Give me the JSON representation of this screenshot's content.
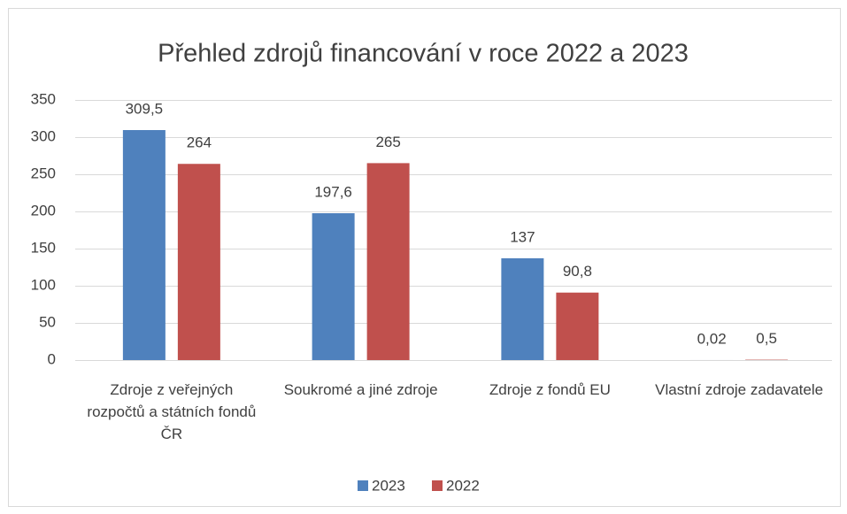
{
  "chart_data": {
    "type": "bar",
    "title": "Přehled zdrojů financování v roce 2022 a 2023",
    "categories": [
      "Zdroje z veřejných rozpočtů a státních fondů ČR",
      "Soukromé a jiné zdroje",
      "Zdroje z fondů EU",
      "Vlastní zdroje zadavatele"
    ],
    "series": [
      {
        "name": "2023",
        "color": "#4f81bd",
        "values": [
          309.5,
          197.6,
          137,
          0.02
        ],
        "value_labels": [
          "309,5",
          "197,6",
          "137",
          "0,02"
        ]
      },
      {
        "name": "2022",
        "color": "#c0504d",
        "values": [
          264,
          265,
          90.8,
          0.5
        ],
        "value_labels": [
          "264",
          "265",
          "90,8",
          "0,5"
        ]
      }
    ],
    "ylim": [
      0,
      350
    ],
    "yticks": [
      0,
      50,
      100,
      150,
      200,
      250,
      300,
      350
    ],
    "grid": true,
    "legend": "bottom"
  }
}
